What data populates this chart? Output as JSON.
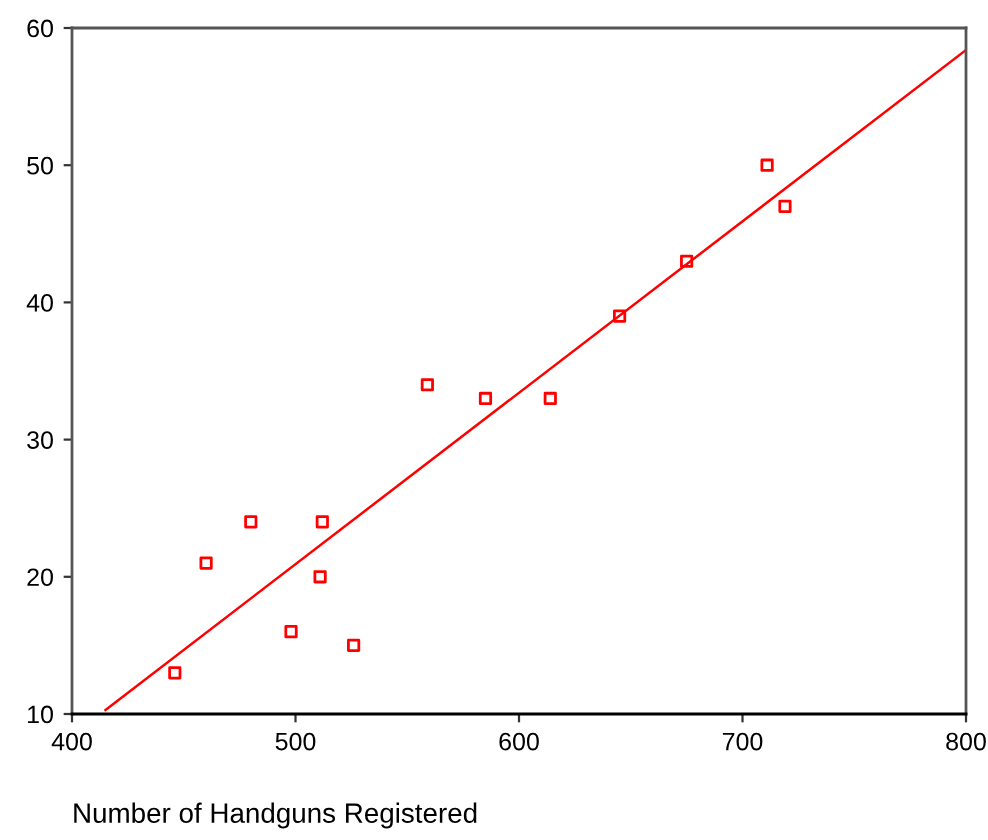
{
  "chart_data": {
    "type": "scatter",
    "xlabel": "Number of Handguns Registered",
    "xlim": [
      400,
      800
    ],
    "xticks": [
      400,
      500,
      600,
      700,
      800
    ],
    "ylim": [
      10,
      60
    ],
    "yticks": [
      10,
      20,
      30,
      40,
      50,
      60
    ],
    "grid": false,
    "series": [
      {
        "marker": "square",
        "color": "#ff0000",
        "x": [
          446,
          460,
          480,
          498,
          511,
          512,
          526,
          559,
          585,
          614,
          645,
          675,
          711,
          719
        ],
        "values": [
          13,
          21,
          24,
          16,
          20,
          24,
          15,
          34,
          33,
          33,
          39,
          43,
          50,
          47
        ]
      },
      {
        "type": "line",
        "marker": "none",
        "color": "#ff0000",
        "x": [
          415,
          800
        ],
        "values": [
          10.3,
          58.4
        ]
      }
    ]
  }
}
